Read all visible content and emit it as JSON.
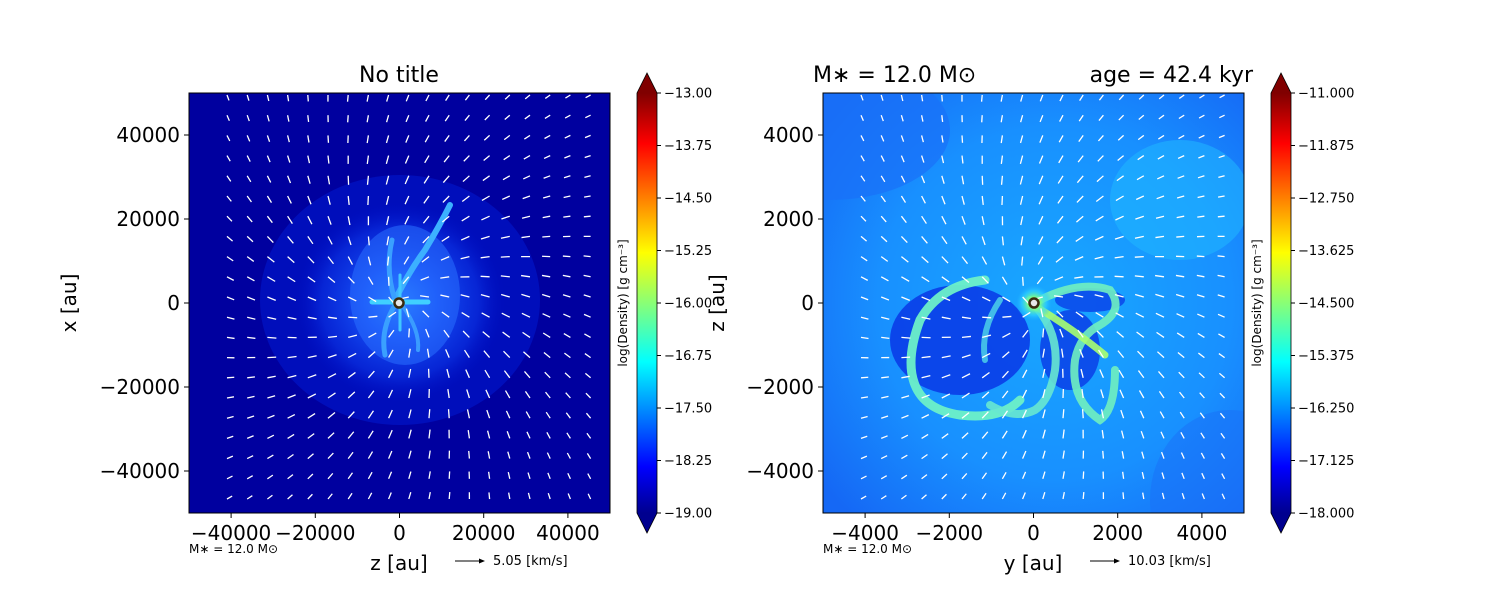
{
  "figure": {
    "left_panel": {
      "title": "No title",
      "xlabel": "z [au]",
      "ylabel": "x [au]",
      "mass_note": "M∗ = 12.0 M⊙",
      "arrow_label": "5.05 [km/s]"
    },
    "right_panel": {
      "title_left": "M∗ = 12.0 M⊙",
      "title_right": "age = 42.4 kyr",
      "xlabel": "y [au]",
      "ylabel": "z [au]",
      "mass_note": "M∗ = 12.0 M⊙",
      "arrow_label": "10.03 [km/s]"
    }
  },
  "chart_data": [
    {
      "type": "heatmap",
      "title": "No title",
      "xlabel": "z [au]",
      "ylabel": "x [au]",
      "xlim": [
        -50000,
        50000
      ],
      "ylim": [
        -50000,
        50000
      ],
      "x_ticks": [
        "−40000",
        "−20000",
        "0",
        "20000",
        "40000"
      ],
      "y_ticks": [
        "40000",
        "20000",
        "0",
        "−20000",
        "−40000"
      ],
      "x_tick_values": [
        -40000,
        -20000,
        0,
        20000,
        40000
      ],
      "y_tick_values": [
        40000,
        20000,
        0,
        -20000,
        -40000
      ],
      "colorbar": {
        "label": "log(Density) [g cm⁻³]",
        "range": [
          -19.0,
          -13.0
        ],
        "ticks": [
          "−13.00",
          "−13.75",
          "−14.50",
          "−15.25",
          "−16.00",
          "−16.75",
          "−17.50",
          "−18.25",
          "−19.00"
        ],
        "tick_values": [
          -13.0,
          -13.75,
          -14.5,
          -15.25,
          -16.0,
          -16.75,
          -17.5,
          -18.25,
          -19.0
        ],
        "colormap": "jet"
      },
      "velocity_reference_kms": 5.05,
      "star": {
        "x": 0,
        "y": 0
      }
    },
    {
      "type": "heatmap",
      "title": "M∗ = 12.0 M⊙ age = 42.4 kyr",
      "xlabel": "y [au]",
      "ylabel": "z [au]",
      "xlim": [
        -5000,
        5000
      ],
      "ylim": [
        -5000,
        5000
      ],
      "x_ticks": [
        "−4000",
        "−2000",
        "0",
        "2000",
        "4000"
      ],
      "y_ticks": [
        "4000",
        "2000",
        "0",
        "−2000",
        "−4000"
      ],
      "x_tick_values": [
        -4000,
        -2000,
        0,
        2000,
        4000
      ],
      "y_tick_values": [
        4000,
        2000,
        0,
        -2000,
        -4000
      ],
      "colorbar": {
        "label": "log(Density) [g cm⁻³]",
        "range": [
          -18.0,
          -11.0
        ],
        "ticks": [
          "−11.000",
          "−11.875",
          "−12.750",
          "−13.625",
          "−14.500",
          "−15.375",
          "−16.250",
          "−17.125",
          "−18.000"
        ],
        "tick_values": [
          -11.0,
          -11.875,
          -12.75,
          -13.625,
          -14.5,
          -15.375,
          -16.25,
          -17.125,
          -18.0
        ],
        "colormap": "jet"
      },
      "velocity_reference_kms": 10.03,
      "star": {
        "x": 0,
        "y": 0
      }
    }
  ],
  "colors": {
    "jet_dark_blue": "#00008f",
    "jet_blue": "#0000ff",
    "jet_cyan": "#00ffff",
    "jet_yellow": "#ffff00",
    "jet_red": "#ff0000",
    "jet_dark_red": "#800000",
    "star_ring": "#3a2c10",
    "star_fill": "#e6e6e6",
    "arrows": "#ffffff"
  }
}
